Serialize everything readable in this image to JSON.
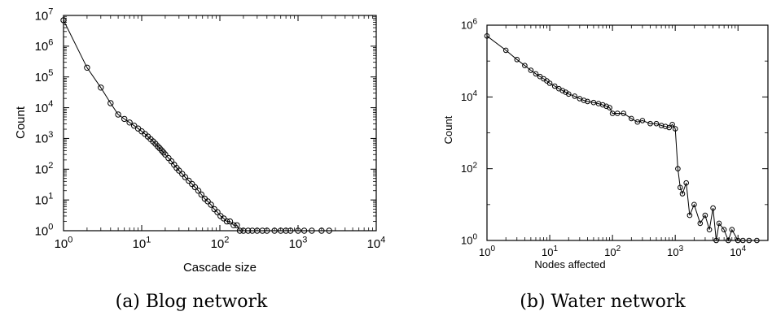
{
  "chart_data": [
    {
      "id": "blog",
      "type": "line",
      "scale": "log-log",
      "caption": "(a) Blog network",
      "xlabel": "Cascade size",
      "ylabel": "Count",
      "xlim": [
        1,
        10000
      ],
      "ylim": [
        1,
        10000000
      ],
      "x_ticks": [
        {
          "value": 1,
          "label": "10",
          "exp": "0"
        },
        {
          "value": 10,
          "label": "10",
          "exp": "1"
        },
        {
          "value": 100,
          "label": "10",
          "exp": "2"
        },
        {
          "value": 1000,
          "label": "10",
          "exp": "3"
        },
        {
          "value": 10000,
          "label": "10",
          "exp": "4"
        }
      ],
      "y_ticks": [
        {
          "value": 1,
          "label": "10",
          "exp": "0"
        },
        {
          "value": 10,
          "label": "10",
          "exp": "1"
        },
        {
          "value": 100,
          "label": "10",
          "exp": "2"
        },
        {
          "value": 1000,
          "label": "10",
          "exp": "3"
        },
        {
          "value": 10000,
          "label": "10",
          "exp": "4"
        },
        {
          "value": 100000,
          "label": "10",
          "exp": "5"
        },
        {
          "value": 1000000,
          "label": "10",
          "exp": "6"
        },
        {
          "value": 10000000,
          "label": "10",
          "exp": "7"
        }
      ],
      "series": [
        {
          "marker": "circle",
          "x": [
            1,
            2,
            3,
            4,
            5,
            6,
            7,
            8,
            9,
            10,
            11,
            12,
            13,
            14,
            15,
            16,
            17,
            18,
            19,
            20,
            22,
            24,
            26,
            28,
            30,
            33,
            36,
            40,
            44,
            48,
            53,
            58,
            64,
            70,
            77,
            85,
            93,
            102,
            112,
            123,
            135,
            150,
            165,
            180,
            200,
            230,
            260,
            300,
            350,
            400,
            500,
            600,
            700,
            800,
            1000,
            1200,
            1500,
            2000,
            2500
          ],
          "y": [
            7000000,
            200000,
            45000,
            14000,
            6000,
            4300,
            3300,
            2600,
            2100,
            1700,
            1400,
            1150,
            950,
            800,
            670,
            560,
            480,
            410,
            350,
            300,
            230,
            180,
            140,
            110,
            90,
            70,
            55,
            42,
            33,
            26,
            20,
            15,
            11,
            9,
            7,
            5,
            4,
            3,
            2.5,
            2,
            2,
            1.5,
            1.5,
            1,
            1,
            1,
            1,
            1,
            1,
            1,
            1,
            1,
            1,
            1,
            1,
            1,
            1,
            1,
            1
          ]
        }
      ]
    },
    {
      "id": "water",
      "type": "line",
      "scale": "log-log",
      "caption": "(b) Water network",
      "xlabel": "Nodes affected",
      "ylabel": "Count",
      "xlim": [
        1,
        30000
      ],
      "ylim": [
        1,
        1000000
      ],
      "x_ticks": [
        {
          "value": 1,
          "label": "10",
          "exp": "0"
        },
        {
          "value": 10,
          "label": "10",
          "exp": "1"
        },
        {
          "value": 100,
          "label": "10",
          "exp": "2"
        },
        {
          "value": 1000,
          "label": "10",
          "exp": "3"
        },
        {
          "value": 10000,
          "label": "10",
          "exp": "4"
        }
      ],
      "y_ticks": [
        {
          "value": 1,
          "label": "10",
          "exp": "0"
        },
        {
          "value": 100,
          "label": "10",
          "exp": "2"
        },
        {
          "value": 10000,
          "label": "10",
          "exp": "4"
        },
        {
          "value": 1000000,
          "label": "10",
          "exp": "6"
        }
      ],
      "series": [
        {
          "marker": "circle",
          "x": [
            1,
            2,
            3,
            4,
            5,
            6,
            7,
            8,
            9,
            10,
            12,
            14,
            16,
            18,
            20,
            25,
            30,
            35,
            40,
            50,
            60,
            70,
            80,
            90,
            100,
            120,
            150,
            200,
            250,
            300,
            400,
            500,
            600,
            700,
            800,
            900,
            1000,
            1100,
            1200,
            1300,
            1500,
            1700,
            2000,
            2500,
            3000,
            3500,
            4000,
            4500,
            5000,
            6000,
            7000,
            8000,
            10000,
            12000,
            15000,
            20000
          ],
          "y": [
            500000,
            200000,
            110000,
            75000,
            55000,
            44000,
            37000,
            32000,
            28000,
            24000,
            20000,
            17000,
            15000,
            13500,
            12000,
            10500,
            9000,
            8000,
            7500,
            7000,
            6500,
            6000,
            5500,
            5000,
            3500,
            3500,
            3500,
            2500,
            2000,
            2200,
            1800,
            1800,
            1600,
            1500,
            1400,
            1700,
            1300,
            100,
            30,
            20,
            40,
            5,
            10,
            3,
            5,
            2,
            8,
            1,
            3,
            2,
            1,
            2,
            1,
            1,
            1,
            1
          ]
        }
      ]
    }
  ]
}
